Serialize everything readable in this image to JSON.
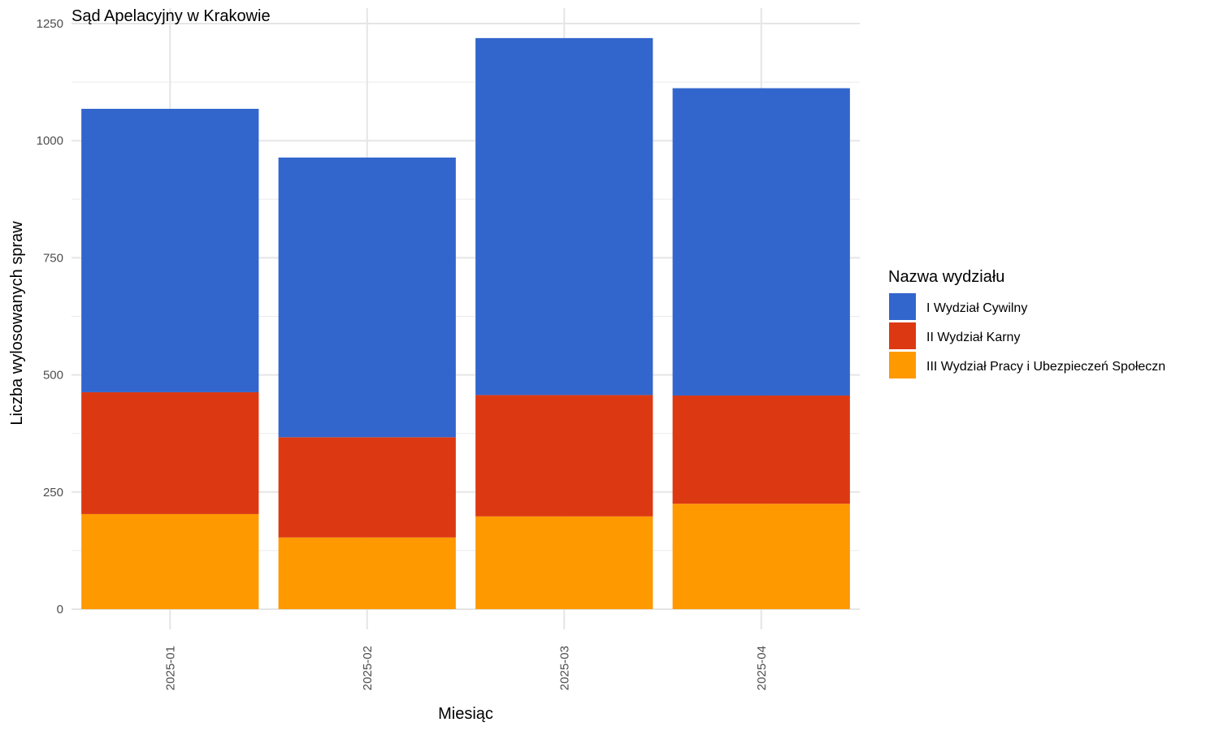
{
  "chart_data": {
    "type": "bar",
    "stacked": true,
    "title": "Sąd Apelacyjny w Krakowie",
    "xlabel": "Miesiąc",
    "ylabel": "Liczba wylosowanych spraw",
    "categories": [
      "2025-01",
      "2025-02",
      "2025-03",
      "2025-04"
    ],
    "ylim": [
      0,
      1250
    ],
    "yticks": [
      0,
      250,
      500,
      750,
      1000,
      1250
    ],
    "grid": true,
    "legend": {
      "title": "Nazwa wydziału",
      "placement": "right"
    },
    "series": [
      {
        "name": "III Wydział Pracy i Ubezpieczeń Społeczn",
        "color": "#FF9900",
        "values": [
          203,
          153,
          198,
          225
        ]
      },
      {
        "name": "II Wydział Karny",
        "color": "#DC3912",
        "values": [
          260,
          214,
          259,
          231
        ]
      },
      {
        "name": "I Wydział Cywilny",
        "color": "#3366CC",
        "values": [
          605,
          597,
          762,
          656
        ]
      }
    ],
    "legend_order": [
      2,
      1,
      0
    ]
  }
}
